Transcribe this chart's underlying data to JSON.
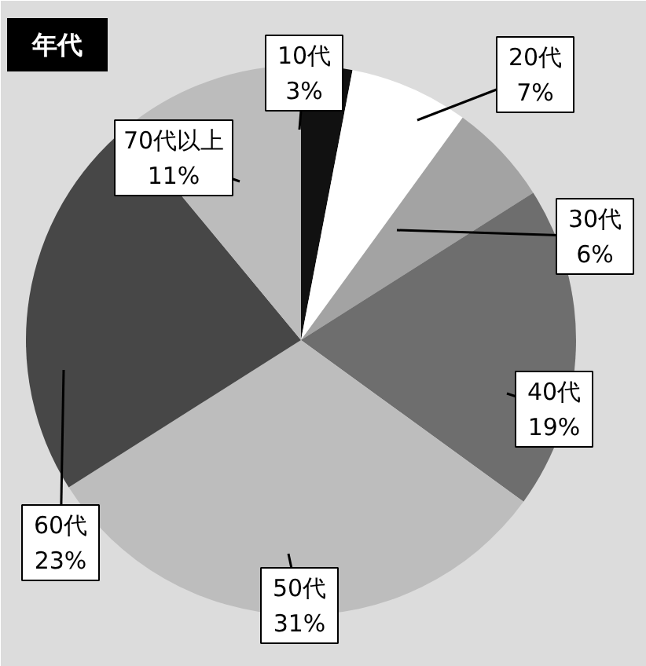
{
  "chart_data": {
    "type": "pie",
    "title": "年代",
    "categories": [
      "10代",
      "20代",
      "30代",
      "40代",
      "50代",
      "60代",
      "70代以上"
    ],
    "values": [
      3,
      7,
      6,
      19,
      31,
      23,
      11
    ],
    "value_labels": [
      "3%",
      "7%",
      "6%",
      "19%",
      "31%",
      "23%",
      "11%"
    ],
    "colors": [
      "#111111",
      "#ffffff",
      "#a3a3a3",
      "#6e6e6e",
      "#bdbdbd",
      "#474747",
      "#bcbcbc"
    ]
  }
}
